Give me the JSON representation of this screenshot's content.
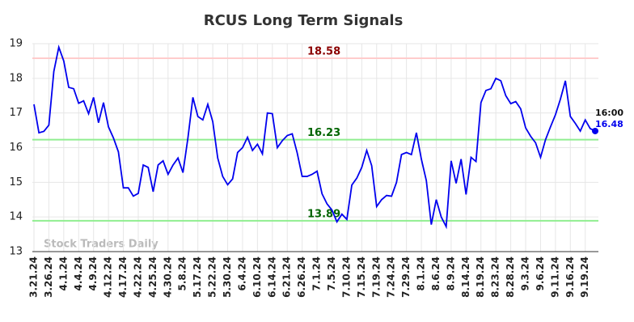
{
  "chart_data": {
    "type": "line",
    "title": "RCUS Long Term Signals",
    "watermark": "Stock Traders Daily",
    "categories": [
      "3.21.24",
      null,
      null,
      "3.26.24",
      null,
      null,
      "4.1.24",
      null,
      null,
      "4.4.24",
      null,
      null,
      "4.9.24",
      null,
      null,
      "4.12.24",
      null,
      null,
      "4.17.24",
      null,
      null,
      "4.22.24",
      null,
      null,
      "4.25.24",
      null,
      null,
      "4.30.24",
      null,
      null,
      "5.8.24",
      null,
      null,
      "5.17.24",
      null,
      null,
      "5.22.24",
      null,
      null,
      "5.30.24",
      null,
      null,
      "6.4.24",
      null,
      null,
      "6.10.24",
      null,
      null,
      "6.14.24",
      null,
      null,
      "6.21.24",
      null,
      null,
      "6.26.24",
      null,
      null,
      "7.1.24",
      null,
      null,
      "7.5.24",
      null,
      null,
      "7.10.24",
      null,
      null,
      "7.15.24",
      null,
      null,
      "7.19.24",
      null,
      null,
      "7.24.24",
      null,
      null,
      "7.29.24",
      null,
      null,
      "8.1.24",
      null,
      null,
      "8.6.24",
      null,
      null,
      "8.9.24",
      null,
      null,
      "8.14.24",
      null,
      null,
      "8.19.24",
      null,
      null,
      "8.23.24",
      null,
      null,
      "8.28.24",
      null,
      null,
      "9.3.24",
      null,
      null,
      "9.6.24",
      null,
      null,
      "9.11.24",
      null,
      null,
      "9.16.24",
      null,
      null,
      "9.19.24",
      null,
      null
    ],
    "values": [
      17.25,
      16.43,
      16.47,
      16.65,
      18.2,
      18.9,
      18.5,
      17.74,
      17.7,
      17.28,
      17.35,
      16.98,
      17.45,
      16.72,
      17.3,
      16.6,
      16.28,
      15.88,
      14.84,
      14.84,
      14.6,
      14.68,
      15.5,
      15.43,
      14.73,
      15.5,
      15.62,
      15.23,
      15.5,
      15.7,
      15.28,
      16.28,
      17.45,
      16.9,
      16.8,
      17.25,
      16.75,
      15.7,
      15.17,
      14.93,
      15.1,
      15.86,
      16.0,
      16.3,
      15.92,
      16.1,
      15.82,
      17.0,
      16.98,
      16.0,
      16.2,
      16.35,
      16.4,
      15.85,
      15.17,
      15.17,
      15.23,
      15.32,
      14.67,
      14.38,
      14.2,
      13.86,
      14.08,
      13.93,
      14.92,
      15.12,
      15.43,
      15.92,
      15.48,
      14.3,
      14.5,
      14.62,
      14.6,
      15.0,
      15.8,
      15.86,
      15.8,
      16.43,
      15.67,
      15.05,
      13.78,
      14.5,
      14.0,
      13.72,
      15.62,
      14.97,
      15.67,
      14.65,
      15.72,
      15.6,
      17.3,
      17.65,
      17.7,
      18.0,
      17.93,
      17.5,
      17.27,
      17.33,
      17.12,
      16.57,
      16.33,
      16.14,
      15.72,
      16.23,
      16.6,
      16.95,
      17.4,
      17.93,
      16.9,
      16.7,
      16.48,
      16.8,
      16.55,
      16.48
    ],
    "color": "#0000ee",
    "last_time": "16:00",
    "hlines": [
      {
        "value": 18.58,
        "color": "#ffcccc",
        "label_color": "#8b0000"
      },
      {
        "value": 16.23,
        "color": "#90ee90",
        "label_color": "#006400"
      },
      {
        "value": 13.89,
        "color": "#90ee90",
        "label_color": "#006400"
      }
    ],
    "ylim": [
      13,
      19
    ],
    "yticks": [
      13,
      14,
      15,
      16,
      17,
      18,
      19
    ],
    "grid": true
  }
}
